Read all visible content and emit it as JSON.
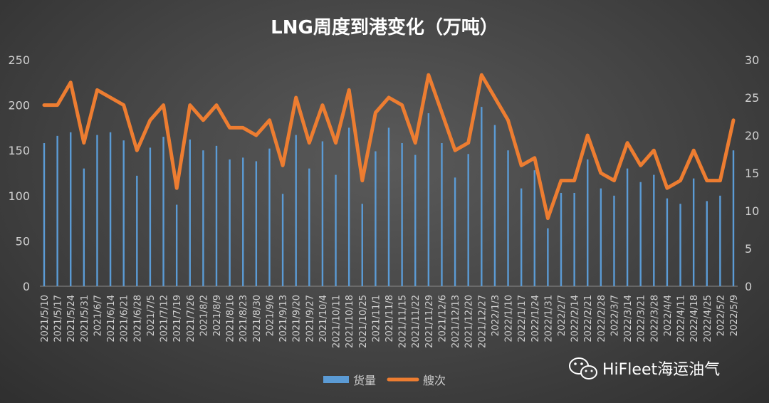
{
  "chart_data": {
    "type": "bar+line",
    "title": "LNG周度到港变化（万吨）",
    "categories": [
      "2021/5/10",
      "2021/5/17",
      "2021/5/24",
      "2021/5/31",
      "2021/6/7",
      "2021/6/14",
      "2021/6/21",
      "2021/6/28",
      "2021/7/5",
      "2021/7/12",
      "2021/7/19",
      "2021/7/26",
      "2021/8/2",
      "2021/8/9",
      "2021/8/16",
      "2021/8/23",
      "2021/8/30",
      "2021/9/6",
      "2021/9/13",
      "2021/9/20",
      "2021/9/27",
      "2021/10/4",
      "2021/10/11",
      "2021/10/18",
      "2021/10/25",
      "2021/11/1",
      "2021/11/8",
      "2021/11/15",
      "2021/11/22",
      "2021/11/29",
      "2021/12/6",
      "2021/12/13",
      "2021/12/20",
      "2021/12/27",
      "2022/1/3",
      "2022/1/10",
      "2022/1/17",
      "2022/1/24",
      "2022/1/31",
      "2022/2/7",
      "2022/2/14",
      "2022/2/21",
      "2022/2/28",
      "2022/3/7",
      "2022/3/14",
      "2022/3/21",
      "2022/3/28",
      "2022/4/4",
      "2022/4/11",
      "2022/4/18",
      "2022/4/25",
      "2022/5/2",
      "2022/5/9"
    ],
    "series": [
      {
        "name": "货量",
        "type": "bar",
        "axis": "left",
        "color": "#5b9bd5",
        "values": [
          158,
          166,
          170,
          130,
          167,
          170,
          161,
          122,
          153,
          165,
          90,
          162,
          150,
          155,
          140,
          142,
          138,
          152,
          102,
          167,
          130,
          160,
          123,
          175,
          91,
          149,
          175,
          158,
          145,
          191,
          158,
          120,
          146,
          198,
          178,
          150,
          108,
          128,
          64,
          103,
          103,
          140,
          108,
          100,
          130,
          115,
          123,
          97,
          91,
          119,
          94,
          100,
          150
        ]
      },
      {
        "name": "艘次",
        "type": "line",
        "axis": "right",
        "color": "#ed7d31",
        "values": [
          24,
          24,
          27,
          19,
          26,
          25,
          24,
          18,
          22,
          24,
          13,
          24,
          22,
          24,
          21,
          21,
          20,
          22,
          16,
          25,
          19,
          24,
          19,
          26,
          14,
          23,
          25,
          24,
          19,
          28,
          23,
          18,
          19,
          28,
          25,
          22,
          16,
          17,
          9,
          14,
          14,
          20,
          15,
          14,
          19,
          16,
          18,
          13,
          14,
          18,
          14,
          14,
          22
        ]
      }
    ],
    "y_left": {
      "min": 0,
      "max": 250,
      "ticks": [
        0,
        50,
        100,
        150,
        200,
        250
      ]
    },
    "y_right": {
      "min": 0,
      "max": 30,
      "ticks": [
        0,
        5,
        10,
        15,
        20,
        25,
        30
      ]
    },
    "grid": false,
    "legend": "bottom"
  },
  "watermark": {
    "text": "HiFleet海运油气",
    "icon": "wechat-icon"
  }
}
